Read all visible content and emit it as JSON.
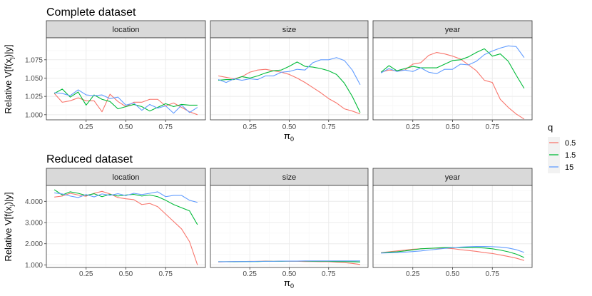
{
  "chart_data": [
    {
      "type": "line",
      "title": "Complete dataset",
      "ylabel": "Relative V[f(x",
      "ylabel_sub": "j",
      "ylabel_tail": ")|y]",
      "xlabel": "π",
      "xlabel_sub": "0",
      "ylim": [
        0.993,
        1.105
      ],
      "xlim": [
        0.0,
        1.0
      ],
      "yticks": [
        1.0,
        1.025,
        1.05,
        1.075
      ],
      "ytick_labels": [
        "1.000",
        "1.025",
        "1.050",
        "1.075"
      ],
      "xticks": [
        0.25,
        0.5,
        0.75
      ],
      "xtick_labels": [
        "0.25",
        "0.50",
        "0.75"
      ],
      "grid": true,
      "panels": [
        {
          "strip": "location",
          "series": [
            {
              "name": "0.5",
              "x": [
                0.05,
                0.1,
                0.15,
                0.2,
                0.25,
                0.3,
                0.35,
                0.4,
                0.45,
                0.5,
                0.55,
                0.6,
                0.65,
                0.7,
                0.75,
                0.8,
                0.85,
                0.9,
                0.95
              ],
              "y": [
                1.029,
                1.017,
                1.019,
                1.023,
                1.019,
                1.019,
                1.004,
                1.028,
                1.018,
                1.011,
                1.017,
                1.017,
                1.021,
                1.021,
                1.012,
                1.016,
                1.01,
                1.004,
                1.0
              ]
            },
            {
              "name": "1.5",
              "x": [
                0.05,
                0.1,
                0.15,
                0.2,
                0.25,
                0.3,
                0.35,
                0.4,
                0.45,
                0.5,
                0.55,
                0.6,
                0.65,
                0.7,
                0.75,
                0.8,
                0.85,
                0.9,
                0.95
              ],
              "y": [
                1.029,
                1.035,
                1.024,
                1.031,
                1.013,
                1.027,
                1.021,
                1.018,
                1.008,
                1.011,
                1.014,
                1.011,
                1.005,
                1.01,
                1.015,
                1.011,
                1.014,
                1.013,
                1.013
              ]
            },
            {
              "name": "15",
              "x": [
                0.05,
                0.1,
                0.15,
                0.2,
                0.25,
                0.3,
                0.35,
                0.4,
                0.45,
                0.5,
                0.55,
                0.6,
                0.65,
                0.7,
                0.75,
                0.8,
                0.85,
                0.9,
                0.95
              ],
              "y": [
                1.03,
                1.029,
                1.026,
                1.034,
                1.027,
                1.026,
                1.027,
                1.022,
                1.024,
                1.013,
                1.016,
                1.006,
                1.014,
                1.009,
                1.012,
                1.002,
                1.013,
                1.003,
                1.01
              ]
            }
          ]
        },
        {
          "strip": "size",
          "series": [
            {
              "name": "0.5",
              "x": [
                0.05,
                0.1,
                0.15,
                0.2,
                0.25,
                0.3,
                0.35,
                0.4,
                0.45,
                0.5,
                0.55,
                0.6,
                0.65,
                0.7,
                0.75,
                0.8,
                0.85,
                0.9,
                0.95
              ],
              "y": [
                1.053,
                1.051,
                1.049,
                1.052,
                1.058,
                1.061,
                1.062,
                1.06,
                1.058,
                1.055,
                1.05,
                1.044,
                1.037,
                1.03,
                1.022,
                1.016,
                1.008,
                1.005,
                1.001
              ]
            },
            {
              "name": "1.5",
              "x": [
                0.05,
                0.1,
                0.15,
                0.2,
                0.25,
                0.3,
                0.35,
                0.4,
                0.45,
                0.5,
                0.55,
                0.6,
                0.65,
                0.7,
                0.75,
                0.8,
                0.85,
                0.9,
                0.95
              ],
              "y": [
                1.047,
                1.048,
                1.048,
                1.052,
                1.05,
                1.053,
                1.057,
                1.06,
                1.061,
                1.066,
                1.072,
                1.066,
                1.065,
                1.063,
                1.06,
                1.055,
                1.043,
                1.025,
                1.003
              ]
            },
            {
              "name": "15",
              "x": [
                0.05,
                0.1,
                0.15,
                0.2,
                0.25,
                0.3,
                0.35,
                0.4,
                0.45,
                0.5,
                0.55,
                0.6,
                0.65,
                0.7,
                0.75,
                0.8,
                0.85,
                0.9,
                0.95
              ],
              "y": [
                1.048,
                1.044,
                1.049,
                1.047,
                1.049,
                1.048,
                1.053,
                1.053,
                1.058,
                1.059,
                1.062,
                1.061,
                1.071,
                1.075,
                1.075,
                1.078,
                1.074,
                1.061,
                1.041
              ]
            }
          ]
        },
        {
          "strip": "year",
          "series": [
            {
              "name": "0.5",
              "x": [
                0.05,
                0.1,
                0.15,
                0.2,
                0.25,
                0.3,
                0.35,
                0.4,
                0.45,
                0.5,
                0.55,
                0.6,
                0.65,
                0.7,
                0.75,
                0.8,
                0.85,
                0.9,
                0.95
              ],
              "y": [
                1.058,
                1.061,
                1.06,
                1.061,
                1.069,
                1.071,
                1.081,
                1.085,
                1.083,
                1.08,
                1.076,
                1.068,
                1.06,
                1.047,
                1.044,
                1.021,
                1.01,
                1.001,
                0.994
              ]
            },
            {
              "name": "1.5",
              "x": [
                0.05,
                0.1,
                0.15,
                0.2,
                0.25,
                0.3,
                0.35,
                0.4,
                0.45,
                0.5,
                0.55,
                0.6,
                0.65,
                0.7,
                0.75,
                0.8,
                0.85,
                0.9,
                0.95
              ],
              "y": [
                1.058,
                1.067,
                1.06,
                1.063,
                1.066,
                1.064,
                1.064,
                1.064,
                1.069,
                1.074,
                1.075,
                1.079,
                1.085,
                1.09,
                1.08,
                1.083,
                1.073,
                1.054,
                1.036
              ]
            },
            {
              "name": "15",
              "x": [
                0.05,
                0.1,
                0.15,
                0.2,
                0.25,
                0.3,
                0.35,
                0.4,
                0.45,
                0.5,
                0.55,
                0.6,
                0.65,
                0.7,
                0.75,
                0.8,
                0.85,
                0.9,
                0.95
              ],
              "y": [
                1.057,
                1.063,
                1.059,
                1.061,
                1.059,
                1.064,
                1.058,
                1.056,
                1.062,
                1.062,
                1.069,
                1.068,
                1.073,
                1.082,
                1.087,
                1.091,
                1.094,
                1.093,
                1.078
              ]
            }
          ]
        }
      ]
    },
    {
      "type": "line",
      "title": "Reduced dataset",
      "ylabel": "Relative V[f(x",
      "ylabel_sub": "j",
      "ylabel_tail": ")|y]",
      "xlabel": "π",
      "xlabel_sub": "0",
      "ylim": [
        0.88,
        4.75
      ],
      "xlim": [
        0.0,
        1.0
      ],
      "yticks": [
        1.0,
        2.0,
        3.0,
        4.0
      ],
      "ytick_labels": [
        "1.000",
        "2.000",
        "3.000",
        "4.000"
      ],
      "xticks": [
        0.25,
        0.5,
        0.75
      ],
      "xtick_labels": [
        "0.25",
        "0.50",
        "0.75"
      ],
      "grid": true,
      "panels": [
        {
          "strip": "location",
          "series": [
            {
              "name": "0.5",
              "x": [
                0.05,
                0.1,
                0.15,
                0.2,
                0.25,
                0.3,
                0.35,
                0.4,
                0.45,
                0.5,
                0.55,
                0.6,
                0.65,
                0.7,
                0.75,
                0.8,
                0.85,
                0.9,
                0.95
              ],
              "y": [
                4.2,
                4.25,
                4.38,
                4.3,
                4.24,
                4.38,
                4.47,
                4.35,
                4.18,
                4.12,
                4.08,
                3.85,
                3.9,
                3.75,
                3.4,
                3.05,
                2.7,
                2.1,
                1.0
              ]
            },
            {
              "name": "1.5",
              "x": [
                0.05,
                0.1,
                0.15,
                0.2,
                0.25,
                0.3,
                0.35,
                0.4,
                0.45,
                0.5,
                0.55,
                0.6,
                0.65,
                0.7,
                0.75,
                0.8,
                0.85,
                0.9,
                0.95
              ],
              "y": [
                4.55,
                4.3,
                4.45,
                4.38,
                4.28,
                4.36,
                4.22,
                4.33,
                4.25,
                4.3,
                4.33,
                4.25,
                4.3,
                4.22,
                4.05,
                3.85,
                3.7,
                3.55,
                2.9
              ]
            },
            {
              "name": "15",
              "x": [
                0.05,
                0.1,
                0.15,
                0.2,
                0.25,
                0.3,
                0.35,
                0.4,
                0.45,
                0.5,
                0.55,
                0.6,
                0.65,
                0.7,
                0.75,
                0.8,
                0.85,
                0.9,
                0.95
              ],
              "y": [
                4.4,
                4.35,
                4.25,
                4.18,
                4.32,
                4.21,
                4.35,
                4.28,
                4.36,
                4.27,
                4.38,
                4.32,
                4.38,
                4.45,
                4.22,
                4.28,
                4.28,
                4.05,
                3.95
              ]
            }
          ]
        },
        {
          "strip": "size",
          "series": [
            {
              "name": "0.5",
              "x": [
                0.05,
                0.1,
                0.15,
                0.2,
                0.25,
                0.3,
                0.35,
                0.4,
                0.45,
                0.5,
                0.55,
                0.6,
                0.65,
                0.7,
                0.75,
                0.8,
                0.85,
                0.9,
                0.95
              ],
              "y": [
                1.14,
                1.15,
                1.16,
                1.16,
                1.17,
                1.17,
                1.18,
                1.17,
                1.18,
                1.17,
                1.17,
                1.16,
                1.16,
                1.15,
                1.15,
                1.13,
                1.11,
                1.07,
                1.02
              ]
            },
            {
              "name": "1.5",
              "x": [
                0.05,
                0.1,
                0.15,
                0.2,
                0.25,
                0.3,
                0.35,
                0.4,
                0.45,
                0.5,
                0.55,
                0.6,
                0.65,
                0.7,
                0.75,
                0.8,
                0.85,
                0.9,
                0.95
              ],
              "y": [
                1.15,
                1.15,
                1.15,
                1.16,
                1.16,
                1.16,
                1.17,
                1.17,
                1.17,
                1.18,
                1.18,
                1.18,
                1.17,
                1.17,
                1.17,
                1.16,
                1.16,
                1.15,
                1.14
              ]
            },
            {
              "name": "15",
              "x": [
                0.05,
                0.1,
                0.15,
                0.2,
                0.25,
                0.3,
                0.35,
                0.4,
                0.45,
                0.5,
                0.55,
                0.6,
                0.65,
                0.7,
                0.75,
                0.8,
                0.85,
                0.9,
                0.95
              ],
              "y": [
                1.15,
                1.15,
                1.16,
                1.16,
                1.16,
                1.17,
                1.17,
                1.17,
                1.18,
                1.18,
                1.18,
                1.19,
                1.19,
                1.19,
                1.19,
                1.19,
                1.19,
                1.19,
                1.19
              ]
            }
          ]
        },
        {
          "strip": "year",
          "series": [
            {
              "name": "0.5",
              "x": [
                0.05,
                0.1,
                0.15,
                0.2,
                0.25,
                0.3,
                0.35,
                0.4,
                0.45,
                0.5,
                0.55,
                0.6,
                0.65,
                0.7,
                0.75,
                0.8,
                0.85,
                0.9,
                0.95
              ],
              "y": [
                1.58,
                1.62,
                1.66,
                1.7,
                1.74,
                1.76,
                1.78,
                1.79,
                1.79,
                1.77,
                1.72,
                1.68,
                1.64,
                1.58,
                1.54,
                1.47,
                1.4,
                1.32,
                1.21
              ]
            },
            {
              "name": "1.5",
              "x": [
                0.05,
                0.1,
                0.15,
                0.2,
                0.25,
                0.3,
                0.35,
                0.4,
                0.45,
                0.5,
                0.55,
                0.6,
                0.65,
                0.7,
                0.75,
                0.8,
                0.85,
                0.9,
                0.95
              ],
              "y": [
                1.57,
                1.6,
                1.62,
                1.66,
                1.71,
                1.76,
                1.78,
                1.8,
                1.82,
                1.82,
                1.82,
                1.82,
                1.82,
                1.8,
                1.76,
                1.7,
                1.62,
                1.51,
                1.35
              ]
            },
            {
              "name": "15",
              "x": [
                0.05,
                0.1,
                0.15,
                0.2,
                0.25,
                0.3,
                0.35,
                0.4,
                0.45,
                0.5,
                0.55,
                0.6,
                0.65,
                0.7,
                0.75,
                0.8,
                0.85,
                0.9,
                0.95
              ],
              "y": [
                1.56,
                1.57,
                1.58,
                1.6,
                1.63,
                1.66,
                1.7,
                1.74,
                1.78,
                1.81,
                1.84,
                1.86,
                1.87,
                1.87,
                1.86,
                1.84,
                1.8,
                1.72,
                1.59
              ]
            }
          ]
        }
      ]
    }
  ],
  "legend": {
    "title": "q",
    "position": "right",
    "items": [
      {
        "label": "0.5",
        "color": "#F8766D"
      },
      {
        "label": "1.5",
        "color": "#00BA38"
      },
      {
        "label": "15",
        "color": "#619CFF"
      }
    ]
  },
  "colors": {
    "panel_bg": "#FFFFFF",
    "panel_border": "#333333",
    "grid_major": "#EBEBEB",
    "grid_minor": "#F5F5F5",
    "strip_bg": "#D9D9D9"
  }
}
